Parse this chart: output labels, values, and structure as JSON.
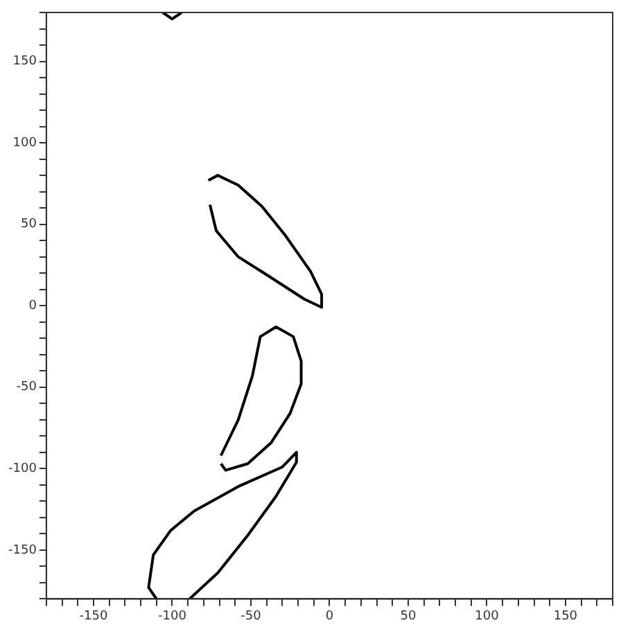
{
  "chart_data": {
    "type": "line",
    "xlim": [
      -180,
      180
    ],
    "ylim": [
      -180,
      180
    ],
    "xticks": [
      {
        "value": -180,
        "label": null
      },
      {
        "value": -170,
        "label": null
      },
      {
        "value": -160,
        "label": null
      },
      -150,
      {
        "value": -140,
        "label": null
      },
      {
        "value": -130,
        "label": null
      },
      {
        "value": -120,
        "label": null
      },
      {
        "value": -110,
        "label": null
      },
      -100,
      {
        "value": -90,
        "label": null
      },
      {
        "value": -80,
        "label": null
      },
      {
        "value": -70,
        "label": null
      },
      {
        "value": -60,
        "label": null
      },
      -50,
      {
        "value": -40,
        "label": null
      },
      {
        "value": -30,
        "label": null
      },
      {
        "value": -20,
        "label": null
      },
      {
        "value": -10,
        "label": null
      },
      0,
      {
        "value": 10,
        "label": null
      },
      {
        "value": 20,
        "label": null
      },
      {
        "value": 30,
        "label": null
      },
      {
        "value": 40,
        "label": null
      },
      50,
      {
        "value": 60,
        "label": null
      },
      {
        "value": 70,
        "label": null
      },
      {
        "value": 80,
        "label": null
      },
      {
        "value": 90,
        "label": null
      },
      100,
      {
        "value": 110,
        "label": null
      },
      {
        "value": 120,
        "label": null
      },
      {
        "value": 130,
        "label": null
      },
      {
        "value": 140,
        "label": null
      },
      150,
      {
        "value": 160,
        "label": null
      },
      {
        "value": 170,
        "label": null
      },
      {
        "value": 180,
        "label": null
      }
    ],
    "yticks": [
      {
        "value": -180,
        "label": null
      },
      {
        "value": -170,
        "label": null
      },
      {
        "value": -160,
        "label": null
      },
      -150,
      {
        "value": -140,
        "label": null
      },
      {
        "value": -130,
        "label": null
      },
      {
        "value": -120,
        "label": null
      },
      {
        "value": -110,
        "label": null
      },
      -100,
      {
        "value": -90,
        "label": null
      },
      {
        "value": -80,
        "label": null
      },
      {
        "value": -70,
        "label": null
      },
      {
        "value": -60,
        "label": null
      },
      -50,
      {
        "value": -40,
        "label": null
      },
      {
        "value": -30,
        "label": null
      },
      {
        "value": -20,
        "label": null
      },
      {
        "value": -10,
        "label": null
      },
      0,
      {
        "value": 10,
        "label": null
      },
      {
        "value": 20,
        "label": null
      },
      {
        "value": 30,
        "label": null
      },
      {
        "value": 40,
        "label": null
      },
      50,
      {
        "value": 60,
        "label": null
      },
      {
        "value": 70,
        "label": null
      },
      {
        "value": 80,
        "label": null
      },
      {
        "value": 90,
        "label": null
      },
      100,
      {
        "value": 110,
        "label": null
      },
      {
        "value": 120,
        "label": null
      },
      {
        "value": 130,
        "label": null
      },
      {
        "value": 140,
        "label": null
      },
      150,
      {
        "value": 160,
        "label": null
      },
      {
        "value": 170,
        "label": null
      },
      {
        "value": 180,
        "label": null
      }
    ],
    "grid": false,
    "legend": false,
    "marker": "none",
    "line_style": "solid",
    "series": [
      {
        "color": "#000000",
        "x": [
          -77,
          -71,
          -58,
          -43,
          -28,
          -12,
          -5,
          -5,
          -16,
          -40,
          -58,
          -72,
          -76
        ],
        "values": [
          77,
          80,
          74,
          61,
          43,
          21,
          7,
          -1,
          4,
          19,
          30,
          46,
          62
        ]
      },
      {
        "color": "#000000",
        "x": [
          -69,
          -58,
          -49,
          -44,
          -34,
          -23,
          -18,
          -18,
          -25,
          -37,
          -52,
          -66,
          -69
        ],
        "values": [
          -92,
          -70,
          -43,
          -19,
          -13,
          -19,
          -34,
          -48,
          -66,
          -84,
          -97,
          -101,
          -97
        ]
      },
      {
        "color": "#000000",
        "x": [
          -110,
          -115,
          -112,
          -101,
          -86,
          -58,
          -30,
          -21,
          -21,
          -34,
          -52,
          -71,
          -89
        ],
        "values": [
          -180,
          -173,
          -153,
          -138,
          -126,
          -111,
          -99,
          -90,
          -96,
          -117,
          -141,
          -164,
          -180
        ]
      },
      {
        "color": "#000000",
        "x": [
          -106,
          -100,
          -94
        ],
        "values": [
          180,
          176,
          180
        ]
      }
    ]
  }
}
